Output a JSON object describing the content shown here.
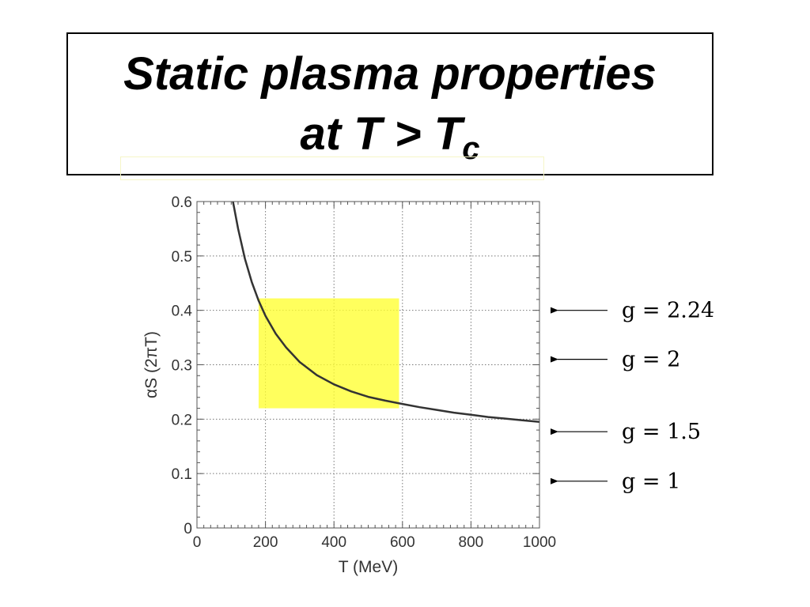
{
  "title": {
    "line1": "Static plasma properties",
    "line2_main": "at T > T",
    "line2_sub": "c"
  },
  "chart_data": {
    "type": "line",
    "xlabel": "T  (MeV)",
    "ylabel": "αS (2πT)",
    "xlim": [
      0,
      1000
    ],
    "ylim": [
      0,
      0.6
    ],
    "x_ticks": [
      0,
      200,
      400,
      600,
      800,
      1000
    ],
    "y_ticks": [
      0,
      0.1,
      0.2,
      0.3,
      0.4,
      0.5,
      0.6
    ],
    "x_tick_labels": [
      "0",
      "200",
      "400",
      "600",
      "800",
      "1000"
    ],
    "y_tick_labels": [
      "0",
      "0.1",
      "0.2",
      "0.3",
      "0.4",
      "0.5",
      "0.6"
    ],
    "grid": true,
    "series": [
      {
        "color": "#333333",
        "x": [
          105,
          120,
          140,
          160,
          180,
          200,
          230,
          260,
          300,
          350,
          400,
          450,
          500,
          550,
          600,
          650,
          700,
          750,
          800,
          850,
          900,
          950,
          1000
        ],
        "y": [
          0.6,
          0.55,
          0.495,
          0.452,
          0.418,
          0.39,
          0.357,
          0.332,
          0.305,
          0.281,
          0.264,
          0.251,
          0.241,
          0.234,
          0.228,
          0.222,
          0.217,
          0.212,
          0.208,
          0.204,
          0.201,
          0.198,
          0.195
        ]
      }
    ],
    "highlight_region": {
      "x": [
        180,
        590
      ],
      "y": [
        0.22,
        0.422
      ],
      "color": "#ffff30"
    },
    "annotations": [
      {
        "label": "g = 2.24",
        "y": 0.4
      },
      {
        "label": "g = 2",
        "y": 0.31
      },
      {
        "label": "g = 1.5",
        "y": 0.177
      },
      {
        "label": "g = 1",
        "y": 0.086
      }
    ]
  }
}
